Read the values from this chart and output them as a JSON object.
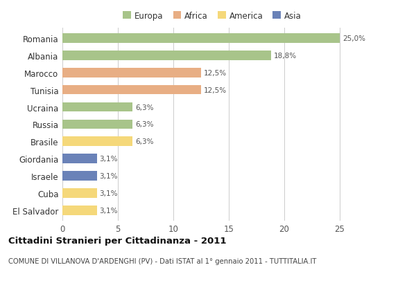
{
  "categories": [
    "Romania",
    "Albania",
    "Marocco",
    "Tunisia",
    "Ucraina",
    "Russia",
    "Brasile",
    "Giordania",
    "Israele",
    "Cuba",
    "El Salvador"
  ],
  "values": [
    25.0,
    18.8,
    12.5,
    12.5,
    6.3,
    6.3,
    6.3,
    3.1,
    3.1,
    3.1,
    3.1
  ],
  "labels": [
    "25,0%",
    "18,8%",
    "12,5%",
    "12,5%",
    "6,3%",
    "6,3%",
    "6,3%",
    "3,1%",
    "3,1%",
    "3,1%",
    "3,1%"
  ],
  "colors": [
    "#a8c48a",
    "#a8c48a",
    "#e8ae84",
    "#e8ae84",
    "#a8c48a",
    "#a8c48a",
    "#f5d87a",
    "#6a82b8",
    "#6a82b8",
    "#f5d87a",
    "#f5d87a"
  ],
  "legend_labels": [
    "Europa",
    "Africa",
    "America",
    "Asia"
  ],
  "legend_colors": [
    "#a8c48a",
    "#e8ae84",
    "#f5d87a",
    "#6a82b8"
  ],
  "title": "Cittadini Stranieri per Cittadinanza - 2011",
  "subtitle": "COMUNE DI VILLANOVA D'ARDENGHI (PV) - Dati ISTAT al 1° gennaio 2011 - TUTTITALIA.IT",
  "xlim": [
    0,
    27
  ],
  "xticks": [
    0,
    5,
    10,
    15,
    20,
    25
  ],
  "background_color": "#ffffff",
  "plot_bg_color": "#ffffff"
}
